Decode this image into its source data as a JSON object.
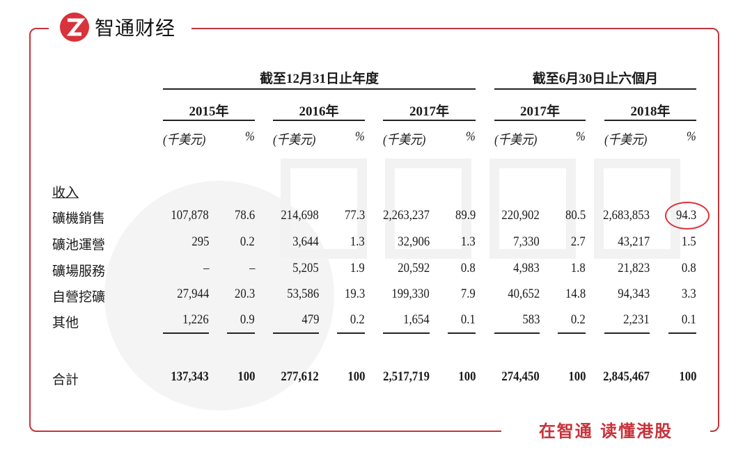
{
  "brand": {
    "logo_text": "智通财经",
    "slogan": "在智通 读懂港股",
    "accent": "#c8323a"
  },
  "table": {
    "group_headers": [
      "截至12月31日止年度",
      "截至6月30日止六個月"
    ],
    "years": [
      "2015年",
      "2016年",
      "2017年",
      "2017年",
      "2018年"
    ],
    "unit_amount": "(千美元)",
    "unit_pct": "%",
    "section": "收入",
    "rows": [
      {
        "label": "礦機銷售",
        "values": [
          "107,878",
          "78.6",
          "214,698",
          "77.3",
          "2,263,237",
          "89.9",
          "220,902",
          "80.5",
          "2,683,853",
          "94.3"
        ]
      },
      {
        "label": "礦池運營",
        "values": [
          "295",
          "0.2",
          "3,644",
          "1.3",
          "32,906",
          "1.3",
          "7,330",
          "2.7",
          "43,217",
          "1.5"
        ]
      },
      {
        "label": "礦場服務",
        "values": [
          "–",
          "–",
          "5,205",
          "1.9",
          "20,592",
          "0.8",
          "4,983",
          "1.8",
          "21,823",
          "0.8"
        ]
      },
      {
        "label": "自營挖礦",
        "values": [
          "27,944",
          "20.3",
          "53,586",
          "19.3",
          "199,330",
          "7.9",
          "40,652",
          "14.8",
          "94,343",
          "3.3"
        ]
      },
      {
        "label": "其他",
        "values": [
          "1,226",
          "0.9",
          "479",
          "0.2",
          "1,654",
          "0.1",
          "583",
          "0.2",
          "2,231",
          "0.1"
        ]
      }
    ],
    "total": {
      "label": "合計",
      "values": [
        "137,343",
        "100",
        "277,612",
        "100",
        "2,517,719",
        "100",
        "274,450",
        "100",
        "2,845,467",
        "100"
      ]
    },
    "highlighted": "94.3"
  }
}
